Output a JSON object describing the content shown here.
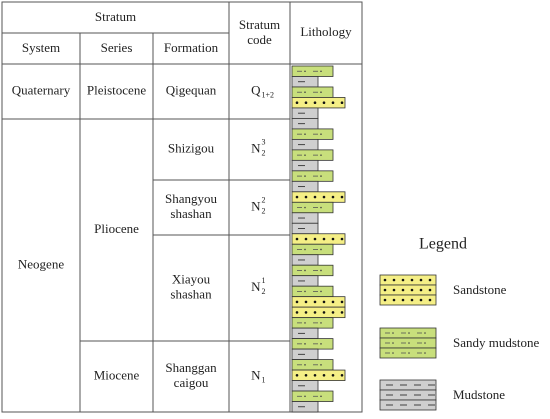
{
  "table": {
    "group_header": "Stratum",
    "headers": [
      "System",
      "Series",
      "Formation"
    ],
    "code_header": [
      "Stratum",
      "code"
    ],
    "lithology_header": "Lithology",
    "systems": [
      "Quaternary",
      "Neogene"
    ],
    "series": [
      "Pleistocene",
      "Pliocene",
      "Miocene"
    ],
    "formations": [
      [
        "Qigequan"
      ],
      [
        "Shizigou"
      ],
      [
        "Shangyou",
        "shashan"
      ],
      [
        "Xiayou",
        "shashan"
      ],
      [
        "Shanggan",
        "caigou"
      ]
    ],
    "codes": [
      {
        "base": "Q",
        "sub": "1+2"
      },
      {
        "base": "N",
        "sub": "2",
        "sup": "3"
      },
      {
        "base": "N",
        "sub": "2",
        "sup": "2"
      },
      {
        "base": "N",
        "sub": "2",
        "sup": "1"
      },
      {
        "base": "N",
        "sub": "1"
      }
    ]
  },
  "legend": {
    "title": "Legend",
    "items": [
      "Sandstone",
      "Sandy mudstone",
      "Mudstone"
    ]
  }
}
